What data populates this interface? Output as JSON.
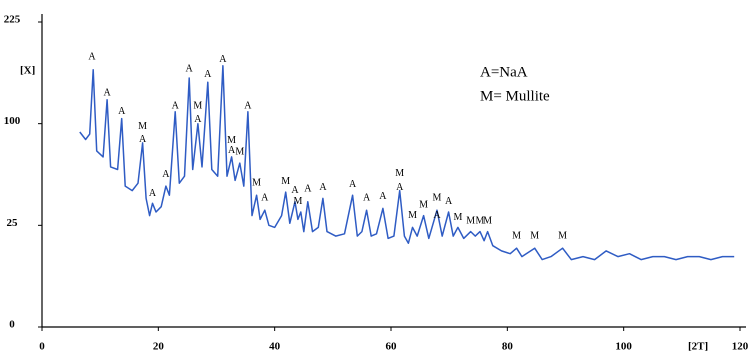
{
  "chart_data": {
    "type": "line",
    "x_label": "[2T]",
    "y_label": "[X]",
    "legend_text": [
      "A=NaA",
      "M= Mullite"
    ],
    "xlim": [
      0,
      120
    ],
    "xticks": [
      0,
      20,
      40,
      60,
      80,
      100,
      120
    ],
    "ylim": [
      0,
      225
    ],
    "yticks": [
      0,
      25,
      100,
      225
    ],
    "y_scale": "sqrt",
    "series": [
      {
        "color": "#2f5cc4",
        "x": [
          6.5,
          7.5,
          8.2,
          8.8,
          9.4,
          10.5,
          11.2,
          11.8,
          13,
          13.7,
          14.3,
          15.5,
          16.5,
          17.3,
          17.9,
          18.5,
          19,
          19.6,
          20.5,
          21.3,
          21.9,
          22.9,
          23.6,
          24.5,
          25.3,
          25.9,
          26.8,
          27.5,
          28.5,
          29.2,
          30.2,
          31.1,
          31.8,
          32.6,
          33.2,
          34,
          34.7,
          35.4,
          36.1,
          36.9,
          37.5,
          38.3,
          39,
          40,
          41.2,
          41.9,
          42.6,
          43.5,
          44,
          44.5,
          45,
          45.7,
          46.5,
          47.5,
          48.3,
          49,
          50.5,
          52,
          53.4,
          54.2,
          55,
          55.8,
          56.6,
          57.5,
          58.6,
          59.5,
          60.5,
          61.5,
          62.3,
          63,
          63.7,
          64.5,
          65.6,
          66.5,
          67.9,
          68.8,
          69.9,
          70.7,
          71.5,
          72.5,
          73.7,
          74.5,
          75.3,
          76,
          76.6,
          77.5,
          79,
          80.5,
          81.6,
          82.5,
          84.7,
          86,
          87.5,
          89.5,
          91,
          93,
          95,
          97,
          99,
          101,
          103,
          105,
          107,
          109,
          111,
          113,
          115,
          117,
          119
        ],
        "values": [
          92,
          85,
          90,
          160,
          75,
          70,
          125,
          62,
          60,
          105,
          48,
          45,
          50,
          82,
          40,
          30,
          37,
          32,
          35,
          48,
          42,
          112,
          50,
          55,
          150,
          60,
          100,
          62,
          145,
          60,
          55,
          165,
          55,
          70,
          52,
          65,
          48,
          112,
          30,
          42,
          28,
          33,
          25,
          24,
          30,
          44,
          26,
          38,
          28,
          32,
          22,
          38,
          22,
          24,
          40,
          22,
          20,
          21,
          42,
          20,
          22,
          33,
          20,
          21,
          34,
          19,
          20,
          45,
          20,
          17,
          24,
          20,
          30,
          19,
          33,
          20,
          32,
          20,
          24,
          19,
          22,
          20,
          22,
          18,
          22,
          16,
          14,
          13,
          15,
          12,
          15,
          11,
          12,
          15,
          11,
          12,
          11,
          14,
          12,
          13,
          11,
          12,
          12,
          11,
          12,
          12,
          11,
          12,
          12
        ]
      }
    ],
    "annotations": [
      {
        "text": "A",
        "x": 8.6,
        "y": 176
      },
      {
        "text": "A",
        "x": 11.2,
        "y": 132
      },
      {
        "text": "A",
        "x": 13.7,
        "y": 112
      },
      {
        "text": "M",
        "x": 17.3,
        "y": 97
      },
      {
        "text": "A",
        "x": 17.3,
        "y": 85
      },
      {
        "text": "A",
        "x": 19,
        "y": 43
      },
      {
        "text": "A",
        "x": 21.3,
        "y": 56
      },
      {
        "text": "A",
        "x": 22.9,
        "y": 118
      },
      {
        "text": "A",
        "x": 25.3,
        "y": 161
      },
      {
        "text": "M",
        "x": 26.8,
        "y": 118
      },
      {
        "text": "A",
        "x": 26.8,
        "y": 104
      },
      {
        "text": "A",
        "x": 28.5,
        "y": 154
      },
      {
        "text": "A",
        "x": 31.1,
        "y": 173
      },
      {
        "text": "M",
        "x": 32.6,
        "y": 84
      },
      {
        "text": "A",
        "x": 32.6,
        "y": 75
      },
      {
        "text": "M",
        "x": 34,
        "y": 74
      },
      {
        "text": "A",
        "x": 35.4,
        "y": 118
      },
      {
        "text": "M",
        "x": 36.9,
        "y": 50
      },
      {
        "text": "A",
        "x": 38.3,
        "y": 40
      },
      {
        "text": "M",
        "x": 41.9,
        "y": 51
      },
      {
        "text": "A",
        "x": 43.5,
        "y": 45
      },
      {
        "text": "M",
        "x": 44,
        "y": 38
      },
      {
        "text": "A",
        "x": 45.7,
        "y": 46
      },
      {
        "text": "A",
        "x": 48.3,
        "y": 47
      },
      {
        "text": "A",
        "x": 53.4,
        "y": 49
      },
      {
        "text": "A",
        "x": 55.8,
        "y": 40
      },
      {
        "text": "A",
        "x": 58.6,
        "y": 41
      },
      {
        "text": "M",
        "x": 61.5,
        "y": 57
      },
      {
        "text": "A",
        "x": 61.5,
        "y": 47
      },
      {
        "text": "M",
        "x": 63.7,
        "y": 30
      },
      {
        "text": "M",
        "x": 65.6,
        "y": 36
      },
      {
        "text": "M",
        "x": 67.9,
        "y": 40
      },
      {
        "text": "A",
        "x": 67.9,
        "y": 30
      },
      {
        "text": "A",
        "x": 69.9,
        "y": 38
      },
      {
        "text": "M",
        "x": 71.5,
        "y": 29
      },
      {
        "text": "M",
        "x": 73.7,
        "y": 27
      },
      {
        "text": "M",
        "x": 75.3,
        "y": 27
      },
      {
        "text": "M",
        "x": 76.6,
        "y": 27
      },
      {
        "text": "M",
        "x": 81.6,
        "y": 20
      },
      {
        "text": "M",
        "x": 84.7,
        "y": 20
      },
      {
        "text": "M",
        "x": 89.5,
        "y": 20
      }
    ]
  }
}
